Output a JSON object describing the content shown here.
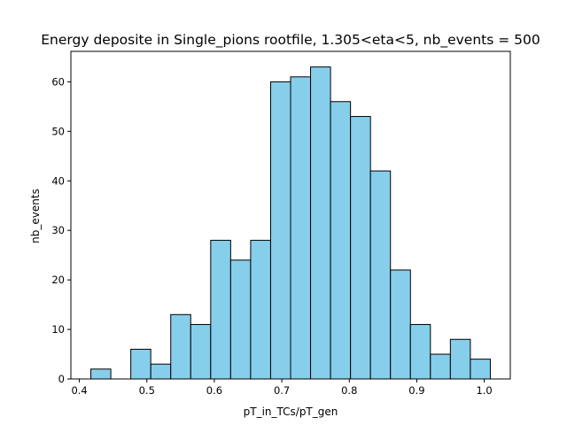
{
  "chart_data": {
    "type": "bar",
    "title": "Energy deposite in Single_pions rootfile, 1.305<eta<5, nb_events = 500",
    "xlabel": "pT_in_TCs/pT_gen",
    "ylabel": "nb_events",
    "bin_edges": [
      0.417,
      0.4466,
      0.4762,
      0.5058,
      0.5354,
      0.565,
      0.5946,
      0.6242,
      0.6538,
      0.6834,
      0.713,
      0.7426,
      0.7722,
      0.8018,
      0.8314,
      0.861,
      0.8906,
      0.9202,
      0.9498,
      0.9794,
      1.009
    ],
    "values": [
      2,
      0,
      6,
      3,
      13,
      11,
      28,
      24,
      28,
      60,
      61,
      63,
      56,
      53,
      42,
      22,
      11,
      5,
      8,
      4
    ],
    "xlim": [
      0.3874,
      1.0386
    ],
    "ylim": [
      0,
      66.15
    ],
    "x_ticks": [
      0.4,
      0.5,
      0.6,
      0.7,
      0.8,
      0.9,
      1.0
    ],
    "x_tick_labels": [
      "0.4",
      "0.5",
      "0.6",
      "0.7",
      "0.8",
      "0.9",
      "1.0"
    ],
    "y_ticks": [
      0,
      10,
      20,
      30,
      40,
      50,
      60
    ],
    "y_tick_labels": [
      "0",
      "10",
      "20",
      "30",
      "40",
      "50",
      "60"
    ],
    "bar_color": "#87ceeb",
    "edge_color": "#000000",
    "grid": false,
    "legend": "none"
  }
}
